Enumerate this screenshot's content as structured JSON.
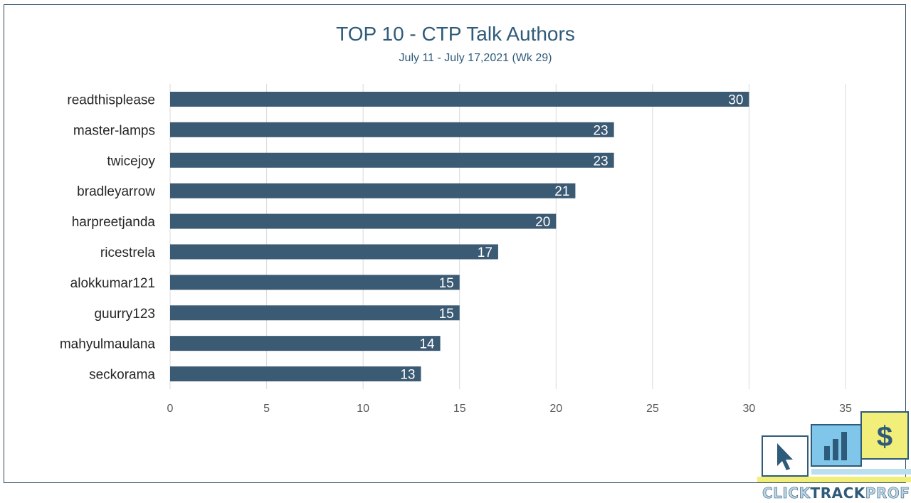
{
  "chart_data": {
    "type": "bar",
    "orientation": "horizontal",
    "title": "TOP 10 - CTP Talk Authors",
    "subtitle": "July 11 - July 17,2021 (Wk 29)",
    "categories": [
      "readthisplease",
      "master-lamps",
      "twicejoy",
      "bradleyarrow",
      "harpreetjanda",
      "ricestrela",
      "alokkumar121",
      "guurry123",
      "mahyulmaulana",
      "seckorama"
    ],
    "values": [
      30,
      23,
      23,
      21,
      20,
      17,
      15,
      15,
      14,
      13
    ],
    "xlim": [
      0,
      35
    ],
    "xticks": [
      "0",
      "5",
      "10",
      "15",
      "20",
      "25",
      "30",
      "35"
    ],
    "grid": true,
    "data_labels": true,
    "xlabel": "",
    "ylabel": ""
  },
  "colors": {
    "bar": "#3b5a73",
    "title": "#2f5b7a",
    "grid": "#d9d9d9",
    "label": "#262626",
    "tick": "#595959"
  },
  "logo": {
    "word_part1": "CLICK",
    "word_part2": "TRACK",
    "word_part3": "PROFIT",
    "icons": [
      "cursor-icon",
      "bar-chart-icon",
      "dollar-icon"
    ]
  }
}
